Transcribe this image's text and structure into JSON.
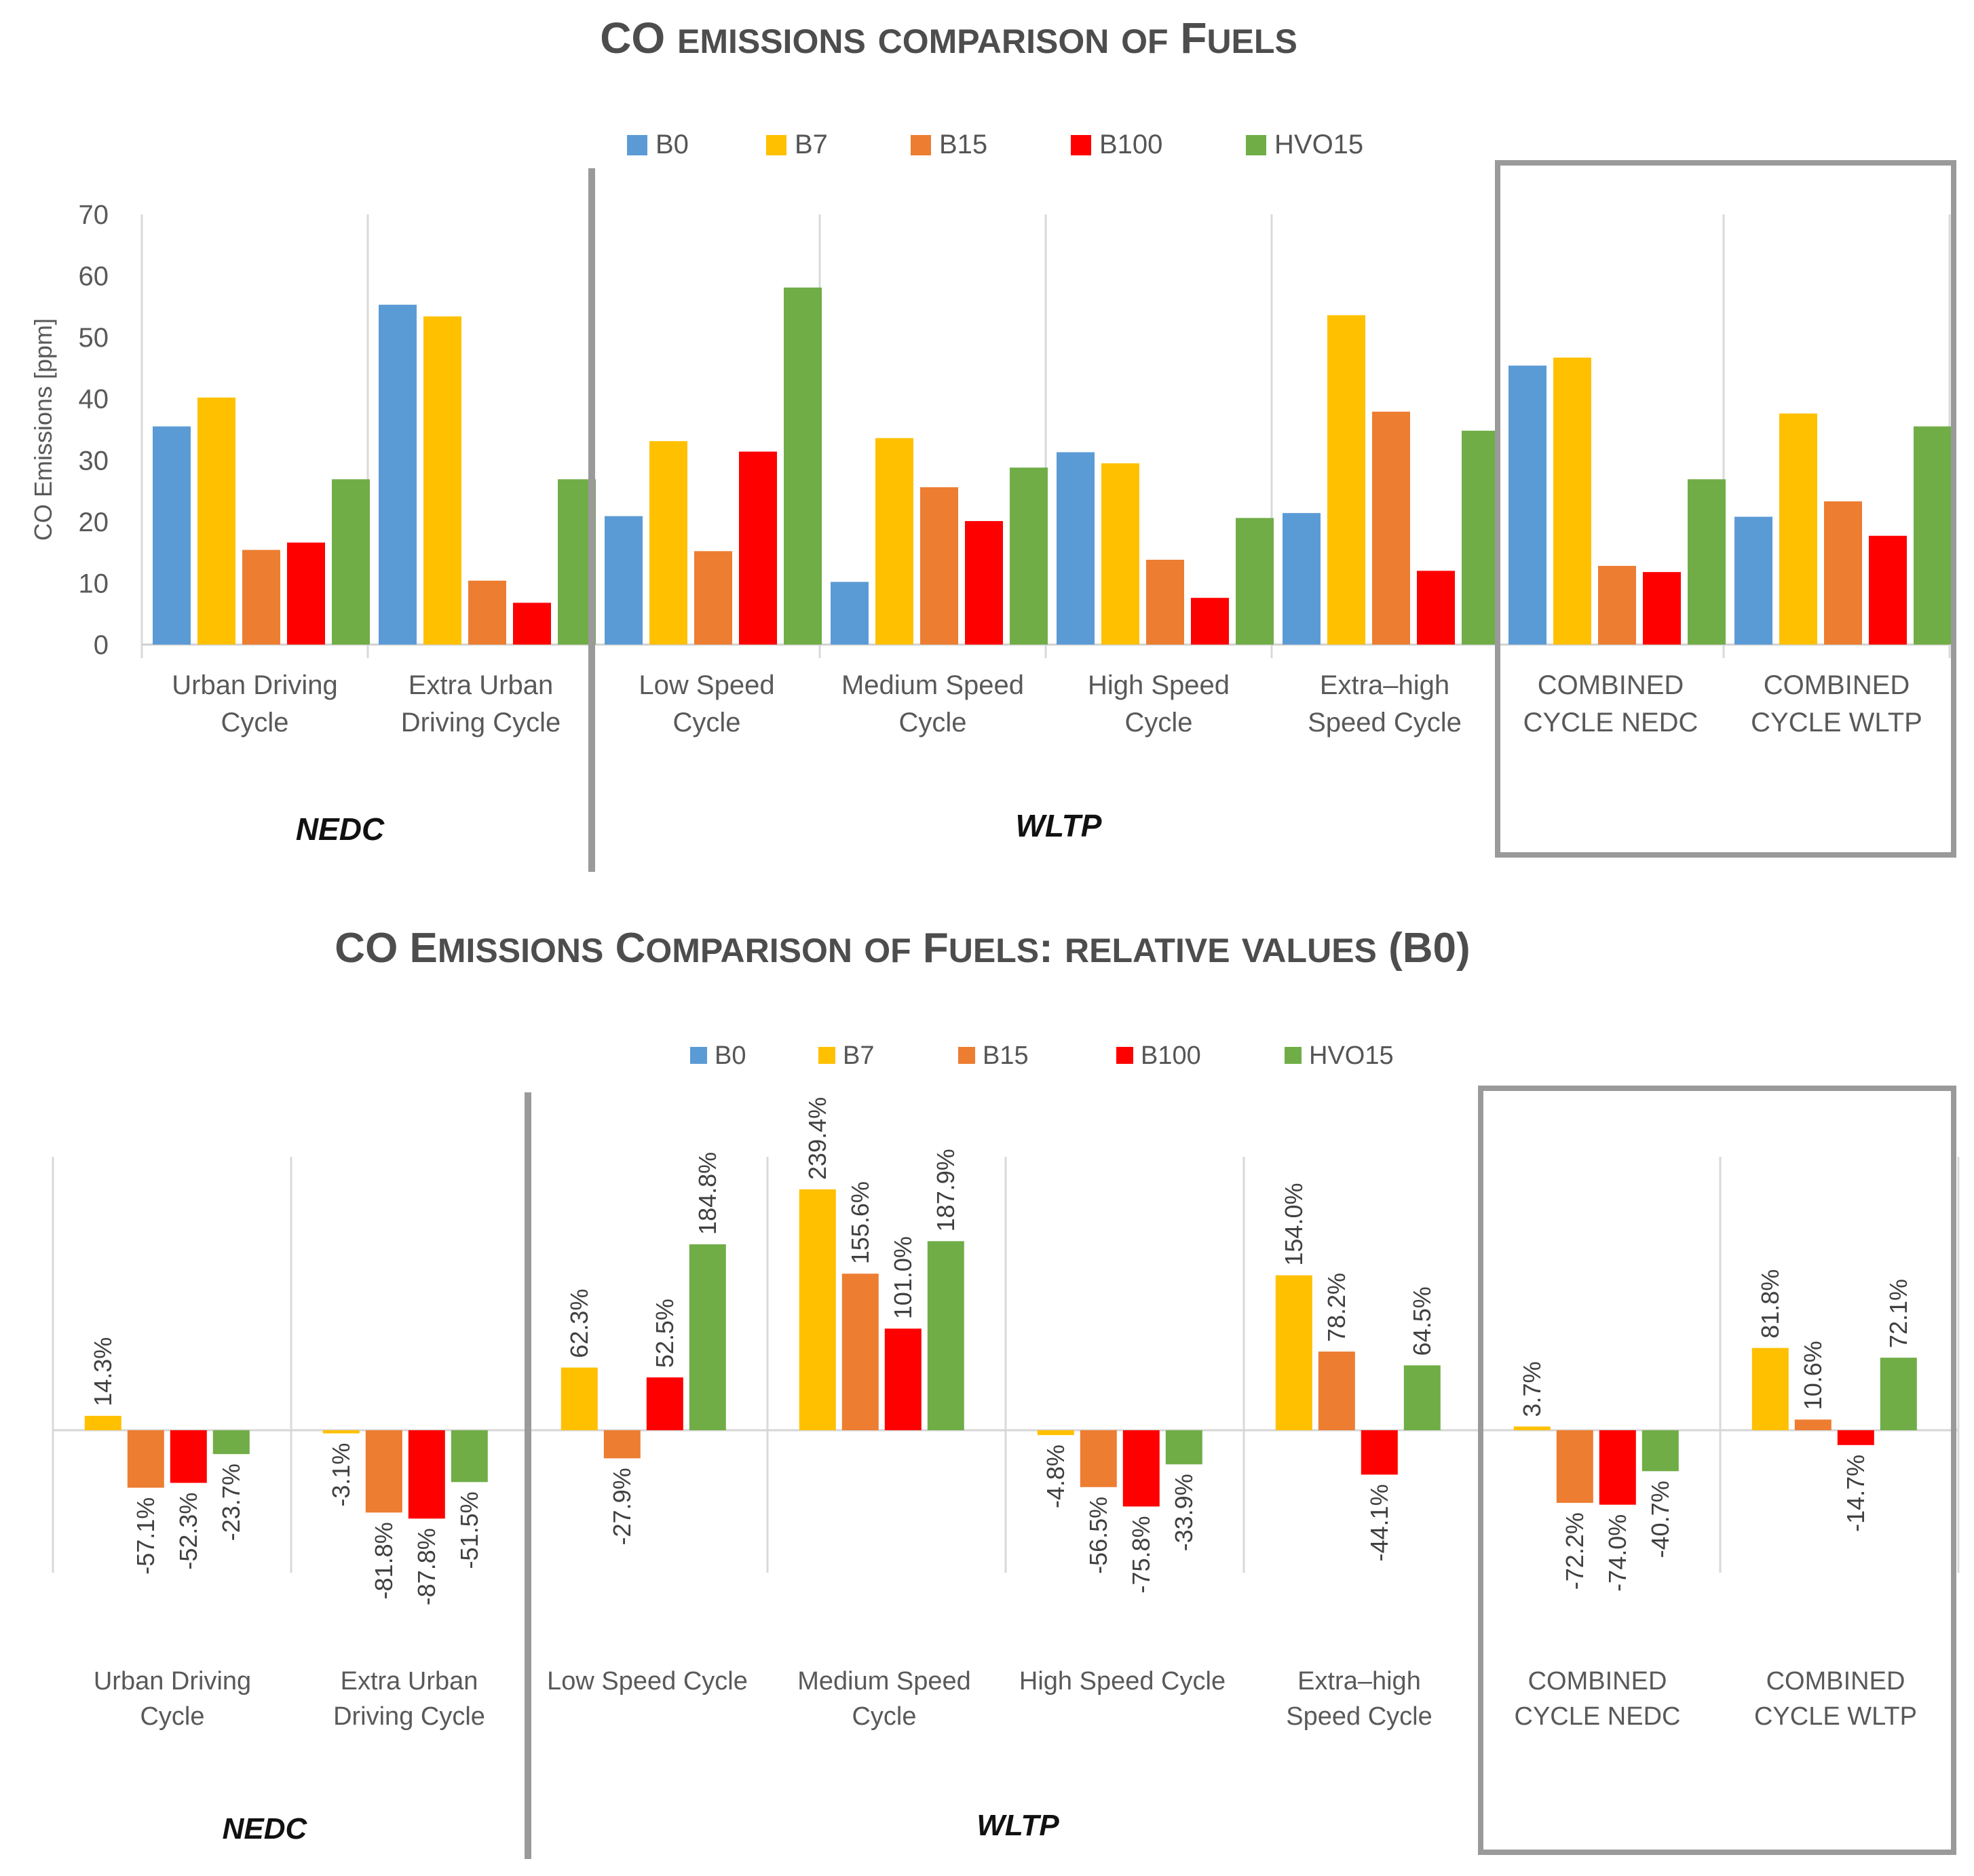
{
  "chart_data": [
    {
      "type": "bar",
      "title": "CO emissions comparison of Fuels",
      "ylabel": "CO Emissions [ppm]",
      "ylim": [
        0,
        70
      ],
      "yticks": [
        0,
        10,
        20,
        30,
        40,
        50,
        60,
        70
      ],
      "grid": false,
      "legend_position": "top",
      "categories": [
        "Urban Driving Cycle",
        "Extra Urban Driving Cycle",
        "Low Speed Cycle",
        "Medium Speed Cycle",
        "High Speed Cycle",
        "Extra–high Speed Cycle",
        "COMBINED CYCLE NEDC",
        "COMBINED CYCLE WLTP"
      ],
      "category_lines": [
        [
          "Urban Driving",
          "Cycle"
        ],
        [
          "Extra Urban",
          "Driving Cycle"
        ],
        [
          "Low Speed",
          "Cycle"
        ],
        [
          "Medium Speed",
          "Cycle"
        ],
        [
          "High Speed",
          "Cycle"
        ],
        [
          "Extra–high",
          "Speed Cycle"
        ],
        [
          "COMBINED",
          "CYCLE NEDC"
        ],
        [
          "COMBINED",
          "CYCLE WLTP"
        ]
      ],
      "series": [
        {
          "name": "B0",
          "color": "#5b9bd5",
          "values": [
            35.5,
            55.3,
            20.9,
            10.2,
            31.3,
            21.4,
            45.4,
            20.8
          ]
        },
        {
          "name": "B7",
          "color": "#ffc000",
          "values": [
            40.2,
            53.4,
            33.1,
            33.6,
            29.5,
            53.6,
            46.7,
            37.6
          ]
        },
        {
          "name": "B15",
          "color": "#ed7d31",
          "values": [
            15.4,
            10.4,
            15.2,
            25.6,
            13.8,
            37.9,
            12.8,
            23.3
          ]
        },
        {
          "name": "B100",
          "color": "#ff0000",
          "values": [
            16.6,
            6.8,
            31.4,
            20.1,
            7.6,
            12.0,
            11.8,
            17.7
          ]
        },
        {
          "name": "HVO15",
          "color": "#70ad47",
          "values": [
            26.9,
            26.9,
            58.1,
            28.8,
            20.6,
            34.8,
            26.9,
            35.5
          ]
        }
      ],
      "groups": [
        {
          "label": "NEDC"
        },
        {
          "label": "WLTP"
        }
      ]
    },
    {
      "type": "bar",
      "title": "CO Emissions Comparison of Fuels: relative values (B0)",
      "unit": "%",
      "grid": false,
      "legend_position": "top",
      "categories": [
        "Urban Driving Cycle",
        "Extra Urban Driving Cycle",
        "Low Speed Cycle",
        "Medium Speed Cycle",
        "High Speed Cycle",
        "Extra–high Speed Cycle",
        "COMBINED CYCLE NEDC",
        "COMBINED CYCLE WLTP"
      ],
      "category_lines": [
        [
          "Urban Driving",
          "Cycle"
        ],
        [
          "Extra Urban",
          "Driving Cycle"
        ],
        [
          "Low Speed Cycle"
        ],
        [
          "Medium Speed",
          "Cycle"
        ],
        [
          "High Speed Cycle"
        ],
        [
          "Extra–high",
          "Speed Cycle"
        ],
        [
          "COMBINED",
          "CYCLE NEDC"
        ],
        [
          "COMBINED",
          "CYCLE WLTP"
        ]
      ],
      "series": [
        {
          "name": "B0",
          "color": "#5b9bd5",
          "values": [
            0,
            0,
            0,
            0,
            0,
            0,
            0,
            0
          ]
        },
        {
          "name": "B7",
          "color": "#ffc000",
          "values": [
            14.3,
            -3.1,
            62.3,
            239.4,
            -4.8,
            154.0,
            3.7,
            81.8
          ]
        },
        {
          "name": "B15",
          "color": "#ed7d31",
          "values": [
            -57.1,
            -81.8,
            -27.9,
            155.6,
            -56.5,
            78.2,
            -72.2,
            10.6
          ]
        },
        {
          "name": "B100",
          "color": "#ff0000",
          "values": [
            -52.3,
            -87.8,
            52.5,
            101.0,
            -75.8,
            -44.1,
            -74.0,
            -14.7
          ]
        },
        {
          "name": "HVO15",
          "color": "#70ad47",
          "values": [
            -23.7,
            -51.5,
            184.8,
            187.9,
            -33.9,
            64.5,
            -40.7,
            72.1
          ]
        }
      ],
      "data_labels": {
        "B7": [
          "14.3%",
          "-3.1%",
          "62.3%",
          "239.4%",
          "-4.8%",
          "154.0%",
          "3.7%",
          "81.8%"
        ],
        "B15": [
          "-57.1%",
          "-81.8%",
          "-27.9%",
          "155.6%",
          "-56.5%",
          "78.2%",
          "-72.2%",
          "10.6%"
        ],
        "B100": [
          "-52.3%",
          "-87.8%",
          "52.5%",
          "101.0%",
          "-75.8%",
          "-44.1%",
          "-74.0%",
          "-14.7%"
        ],
        "HVO15": [
          "-23.7%",
          "-51.5%",
          "184.8%",
          "187.9%",
          "-33.9%",
          "64.5%",
          "-40.7%",
          "72.1%"
        ]
      },
      "groups": [
        {
          "label": "NEDC"
        },
        {
          "label": "WLTP"
        }
      ]
    }
  ]
}
